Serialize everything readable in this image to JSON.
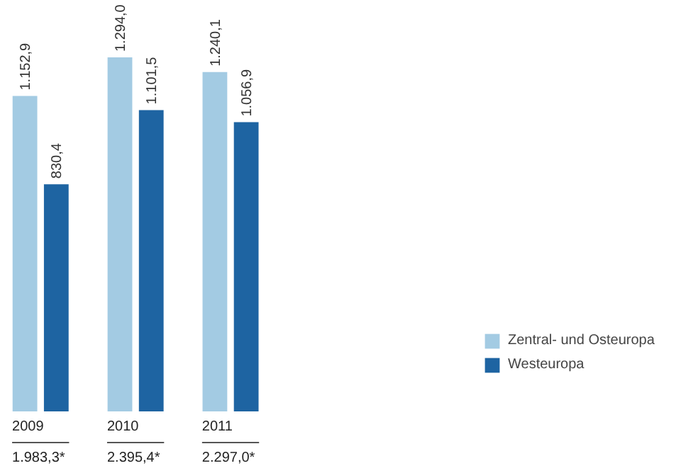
{
  "chart_data": {
    "type": "bar",
    "categories": [
      "2009",
      "2010",
      "2011"
    ],
    "series": [
      {
        "name": "Zentral- und Osteuropa",
        "color": "#a3cbe3",
        "values": [
          1152.9,
          1294.0,
          1240.1
        ],
        "value_labels": [
          "1.152,9",
          "1.294,0",
          "1.240,1"
        ]
      },
      {
        "name": "Westeuropa",
        "color": "#1e64a2",
        "values": [
          830.4,
          1101.5,
          1056.9
        ],
        "value_labels": [
          "830,4",
          "1.101,5",
          "1.056,9"
        ]
      }
    ],
    "totals": [
      "1.983,3*",
      "2.395,4*",
      "2.297,0*"
    ],
    "legend": "bottom right",
    "grid": false
  }
}
